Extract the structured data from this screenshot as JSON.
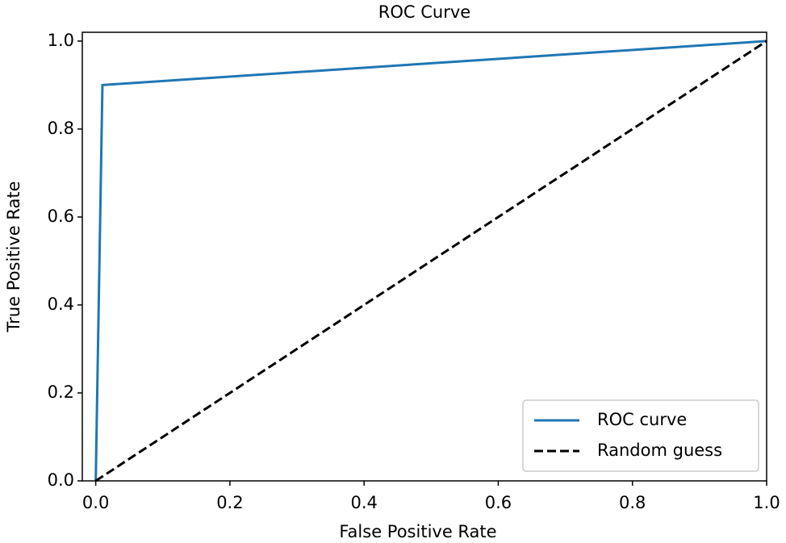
{
  "chart_data": {
    "type": "line",
    "title": "ROC Curve",
    "xlabel": "False Positive Rate",
    "ylabel": "True Positive Rate",
    "series": [
      {
        "name": "ROC curve",
        "color": "#1f77b4",
        "linestyle": "solid",
        "x": [
          0,
          0.01,
          1
        ],
        "values": [
          0,
          0.9,
          1
        ]
      },
      {
        "name": "Random guess",
        "color": "#000000",
        "linestyle": "dashed",
        "x": [
          0,
          1
        ],
        "values": [
          0,
          1
        ]
      }
    ],
    "xlim": [
      -0.02,
      1.0
    ],
    "ylim": [
      0,
      1.02
    ],
    "xticks": [
      {
        "value": 0,
        "label": "0.0"
      },
      0.2,
      0.4,
      0.6,
      0.8,
      {
        "value": 1,
        "label": "1.0"
      }
    ],
    "yticks": [
      {
        "value": 0,
        "label": "0.0"
      },
      0.2,
      0.4,
      0.6,
      0.8,
      {
        "value": 1,
        "label": "1.0"
      }
    ],
    "grid": false,
    "legend": "lower right"
  }
}
